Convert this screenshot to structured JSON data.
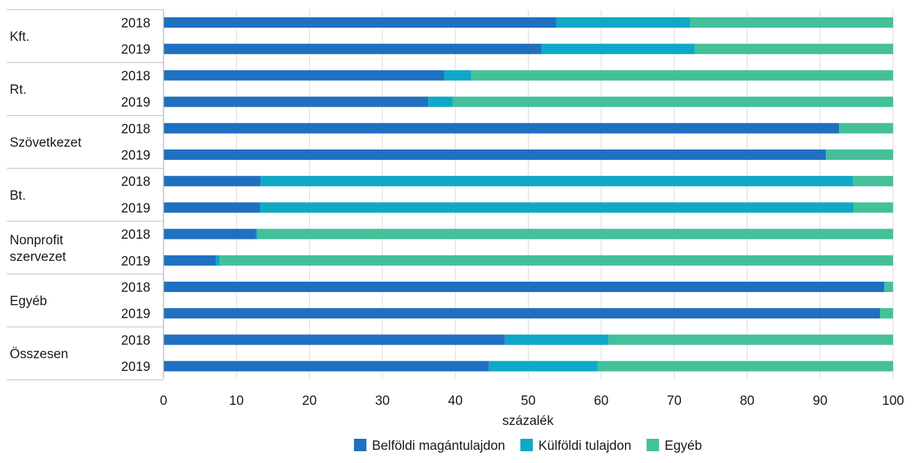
{
  "chart_data": {
    "type": "bar",
    "orientation": "horizontal",
    "stacked": true,
    "xlabel": "százalék",
    "xlim": [
      0,
      100
    ],
    "xticks": [
      0,
      10,
      20,
      30,
      40,
      50,
      60,
      70,
      80,
      90,
      100
    ],
    "grid": true,
    "legend_position": "bottom",
    "groups": [
      {
        "label": "Kft.",
        "label_lines": [
          "Kft."
        ]
      },
      {
        "label": "Rt.",
        "label_lines": [
          "Rt."
        ]
      },
      {
        "label": "Szövetkezet",
        "label_lines": [
          "Szövetkezet"
        ]
      },
      {
        "label": "Bt.",
        "label_lines": [
          "Bt."
        ]
      },
      {
        "label": "Nonprofit szervezet",
        "label_lines": [
          "Nonprofit",
          "szervezet"
        ]
      },
      {
        "label": "Egyéb",
        "label_lines": [
          "Egyéb"
        ]
      },
      {
        "label": "Összesen",
        "label_lines": [
          "Összesen"
        ]
      }
    ],
    "years": [
      "2018",
      "2019"
    ],
    "series": [
      {
        "name": "Belföldi magántulajdon",
        "color": "#2070c0",
        "values": [
          53.8,
          51.8,
          38.5,
          36.3,
          92.6,
          90.8,
          13.3,
          13.2,
          12.7,
          7.2,
          98.8,
          98.2,
          46.8,
          44.6
        ]
      },
      {
        "name": "Külföldi tulajdon",
        "color": "#0fa8c6",
        "values": [
          18.4,
          21.0,
          3.7,
          3.3,
          0.0,
          0.0,
          81.2,
          81.4,
          0.2,
          0.5,
          0.0,
          0.0,
          14.2,
          14.9
        ]
      },
      {
        "name": "Egyéb",
        "color": "#44c09a",
        "values": [
          27.8,
          27.2,
          57.8,
          60.4,
          7.4,
          9.2,
          5.5,
          5.4,
          87.1,
          92.3,
          1.2,
          1.8,
          39.0,
          40.5
        ]
      }
    ]
  }
}
